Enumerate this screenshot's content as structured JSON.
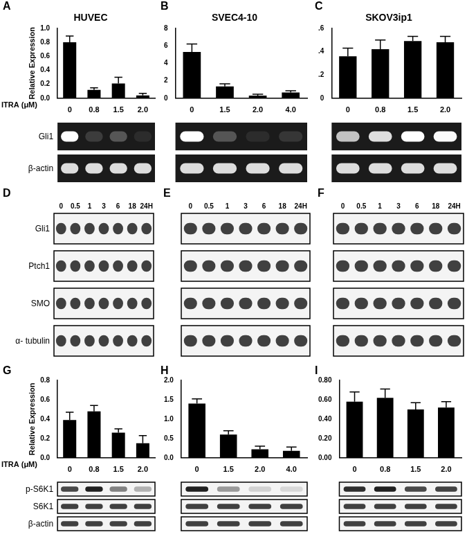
{
  "chart_data": [
    {
      "panel": "A",
      "type": "bar",
      "title": "HUVEC",
      "y_label": "Relative Expression",
      "x_label": "ITRA (μM)",
      "categories": [
        "0",
        "0.8",
        "1.5",
        "2.0"
      ],
      "values": [
        0.8,
        0.12,
        0.21,
        0.04
      ],
      "errors": [
        0.09,
        0.03,
        0.09,
        0.03
      ],
      "color": "#000000",
      "ylim": [
        0,
        1.0
      ],
      "yticks": [
        {
          "value": 0,
          "label": "0.0"
        },
        {
          "value": 0.2,
          "label": "0.2"
        },
        {
          "value": 0.4,
          "label": "0.4"
        },
        {
          "value": 0.6,
          "label": "0.6"
        },
        {
          "value": 0.8,
          "label": "0.8"
        },
        {
          "value": 1.0,
          "label": "1.0"
        }
      ],
      "grid": false,
      "blot": {
        "type": "gel",
        "rows": [
          "Gli1",
          "β-actin"
        ]
      }
    },
    {
      "panel": "B",
      "type": "bar",
      "title": "SVEC4-10",
      "categories": [
        "0",
        "1.5",
        "2.0",
        "4.0"
      ],
      "values": [
        5.3,
        1.35,
        0.3,
        0.65
      ],
      "errors": [
        0.9,
        0.3,
        0.15,
        0.2
      ],
      "color": "#000000",
      "ylim": [
        0,
        8
      ],
      "yticks": [
        0,
        2,
        4,
        6,
        8
      ],
      "grid": false,
      "blot": {
        "type": "gel",
        "rows": [
          null,
          null
        ]
      }
    },
    {
      "panel": "C",
      "type": "bar",
      "title": "SKOV3ip1",
      "categories": [
        "0",
        "0.8",
        "1.5",
        "2.0"
      ],
      "values": [
        0.36,
        0.42,
        0.49,
        0.48
      ],
      "errors": [
        0.07,
        0.08,
        0.04,
        0.05
      ],
      "color": "#000000",
      "ylim": [
        0,
        0.6
      ],
      "yticks": [
        0,
        {
          "value": 0.2,
          "label": ".2"
        },
        {
          "value": 0.4,
          "label": ".4"
        },
        {
          "value": 0.6,
          "label": ".6"
        }
      ],
      "grid": false,
      "blot": {
        "type": "gel",
        "rows": [
          null,
          null
        ]
      }
    },
    {
      "panel": "G",
      "type": "bar",
      "y_label": "Relative Expression",
      "x_label": "ITRA (μM)",
      "categories": [
        "0",
        "0.8",
        "1.5",
        "2.0"
      ],
      "values": [
        0.39,
        0.48,
        0.26,
        0.15
      ],
      "errors": [
        0.08,
        0.06,
        0.04,
        0.08
      ],
      "color": "#000000",
      "ylim": [
        0,
        0.8
      ],
      "yticks": [
        {
          "value": 0,
          "label": "0.0"
        },
        {
          "value": 0.2,
          "label": "0.2"
        },
        {
          "value": 0.4,
          "label": "0.4"
        },
        {
          "value": 0.6,
          "label": "0.6"
        },
        {
          "value": 0.8,
          "label": "0.8"
        }
      ],
      "grid": false,
      "blot": {
        "type": "western",
        "rows": [
          "p-S6K1",
          "S6K1",
          "β-actin"
        ]
      }
    },
    {
      "panel": "H",
      "type": "bar",
      "categories": [
        "0",
        "1.5",
        "2.0",
        "4.0"
      ],
      "values": [
        1.4,
        0.6,
        0.22,
        0.18
      ],
      "errors": [
        0.12,
        0.1,
        0.08,
        0.1
      ],
      "color": "#000000",
      "ylim": [
        0,
        2.0
      ],
      "yticks": [
        {
          "value": 0,
          "label": "0.0"
        },
        {
          "value": 0.5,
          "label": "0.5"
        },
        {
          "value": 1.0,
          "label": "1.0"
        },
        {
          "value": 1.5,
          "label": "1.5"
        },
        {
          "value": 2.0,
          "label": "2.0"
        }
      ],
      "grid": false,
      "blot": {
        "type": "western",
        "rows": [
          null,
          null,
          null
        ]
      }
    },
    {
      "panel": "I",
      "type": "bar",
      "categories": [
        "0",
        "0.8",
        "1.5",
        "2.0"
      ],
      "values": [
        0.58,
        0.62,
        0.5,
        0.52
      ],
      "errors": [
        0.1,
        0.09,
        0.07,
        0.06
      ],
      "color": "#000000",
      "ylim": [
        0,
        0.8
      ],
      "yticks": [
        {
          "value": 0,
          "label": "0.00"
        },
        {
          "value": 0.2,
          "label": "0.20"
        },
        {
          "value": 0.4,
          "label": "0.40"
        },
        {
          "value": 0.6,
          "label": "0.60"
        },
        {
          "value": 0.8,
          "label": "0.80"
        }
      ],
      "grid": false,
      "blot": {
        "type": "western",
        "rows": [
          null,
          null,
          null
        ]
      }
    }
  ],
  "blots": [
    {
      "panel": "D",
      "lanes": [
        "0",
        "0.5",
        "1",
        "3",
        "6",
        "18",
        "24H"
      ],
      "rows": [
        "Gli1",
        "Ptch1",
        "SMO",
        "α- tubulin"
      ]
    },
    {
      "panel": "E",
      "lanes": [
        "0",
        "0.5",
        "1",
        "3",
        "6",
        "18",
        "24H"
      ],
      "rows": [
        null,
        null,
        null,
        null
      ]
    },
    {
      "panel": "F",
      "lanes": [
        "0",
        "0.5",
        "1",
        "3",
        "6",
        "18",
        "24H"
      ],
      "rows": [
        null,
        null,
        null,
        null
      ]
    }
  ]
}
